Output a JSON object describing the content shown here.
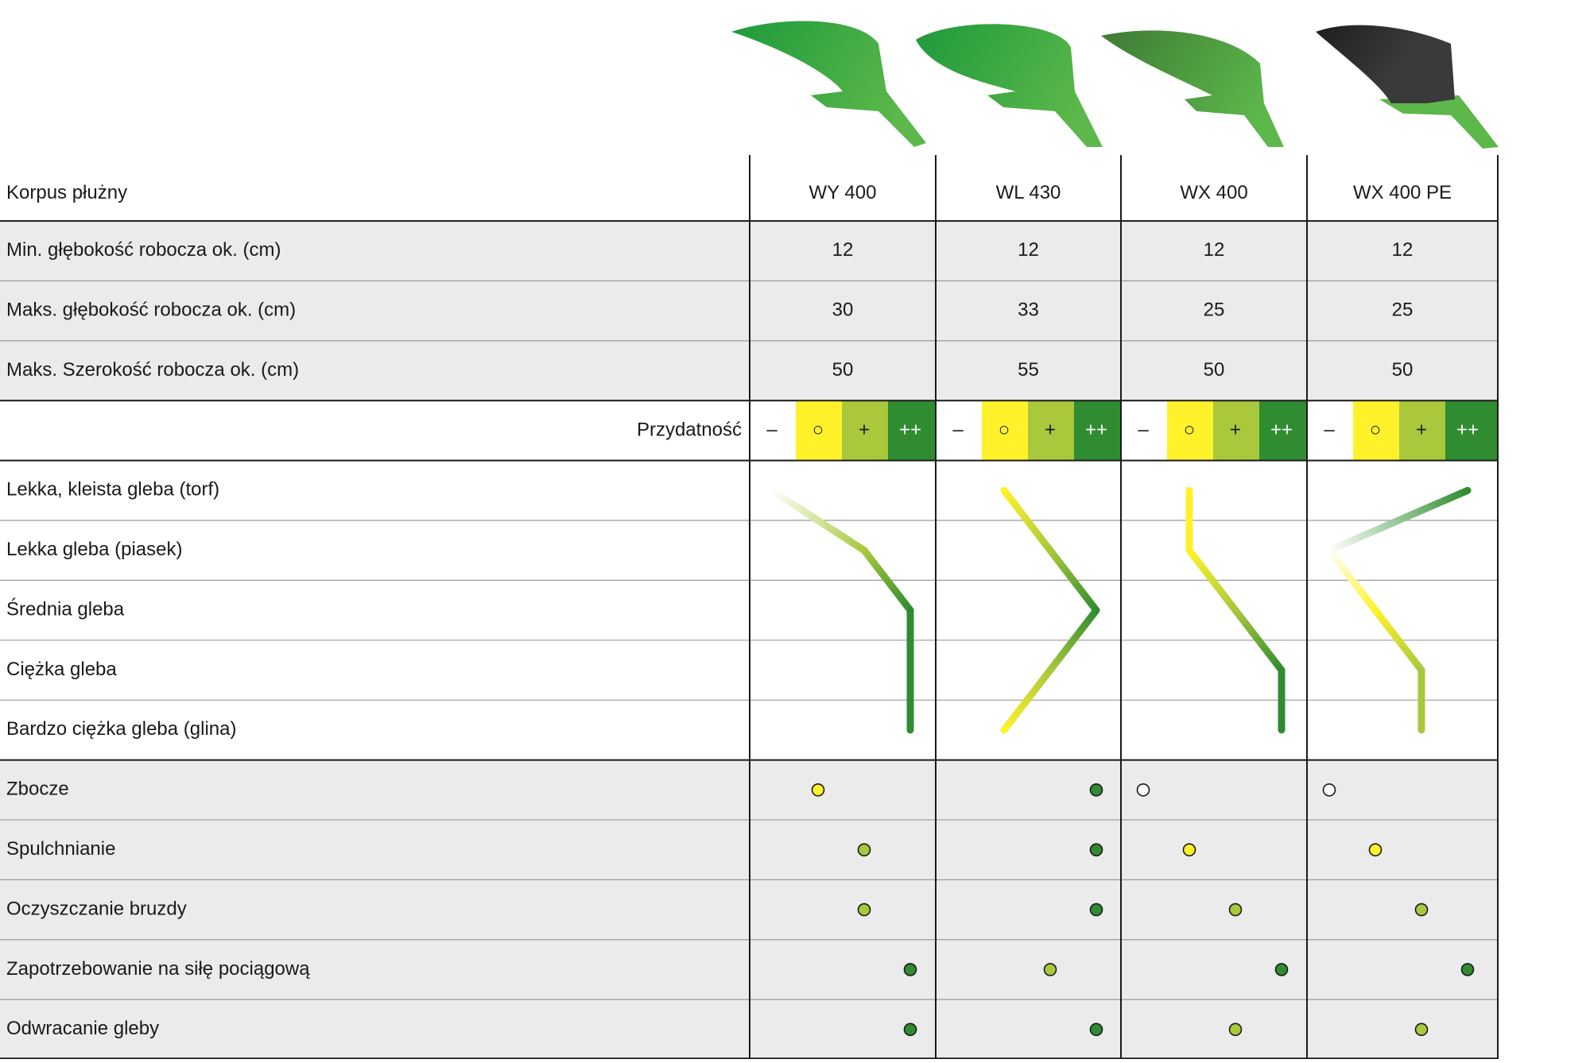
{
  "header": {
    "corner": "Korpus płużny",
    "models": [
      "WY 400",
      "WL 430",
      "WX 400",
      "WX 400 PE"
    ]
  },
  "spec_rows": [
    {
      "label": "Min. głębokość robocza ok. (cm)",
      "values": [
        12,
        12,
        12,
        12
      ]
    },
    {
      "label": "Maks. głębokość robocza ok. (cm)",
      "values": [
        30,
        33,
        25,
        25
      ]
    },
    {
      "label": "Maks. Szerokość robocza ok. (cm)",
      "values": [
        50,
        55,
        50,
        50
      ]
    }
  ],
  "scale": {
    "label": "Przydatność",
    "levels": [
      "–",
      "○",
      "+",
      "++"
    ],
    "colors": [
      "#ffffff",
      "#fff22a",
      "#a9c83c",
      "#2f8c30"
    ]
  },
  "soil_rows": {
    "labels": [
      "Lekka, kleista gleba (torf)",
      "Lekka gleba (piasek)",
      "Średnia gleba",
      "Ciężka gleba",
      "Bardzo ciężka gleba (glina)"
    ],
    "levels": [
      [
        0,
        2,
        3,
        3,
        3
      ],
      [
        1,
        2,
        3,
        2,
        1
      ],
      [
        1,
        1,
        2,
        3,
        3
      ],
      [
        3,
        0,
        1,
        2,
        2
      ]
    ]
  },
  "rating_rows": [
    {
      "label": "Zbocze",
      "levels": [
        1,
        3,
        0,
        0
      ]
    },
    {
      "label": "Spulchnianie",
      "levels": [
        2,
        3,
        1,
        1
      ]
    },
    {
      "label": "Oczyszczanie bruzdy",
      "levels": [
        2,
        3,
        2,
        2
      ]
    },
    {
      "label": "Zapotrzebowanie na siłę pociągową",
      "levels": [
        3,
        2,
        3,
        3
      ]
    },
    {
      "label": "Odwracanie gleby",
      "levels": [
        3,
        3,
        2,
        2
      ]
    }
  ]
}
